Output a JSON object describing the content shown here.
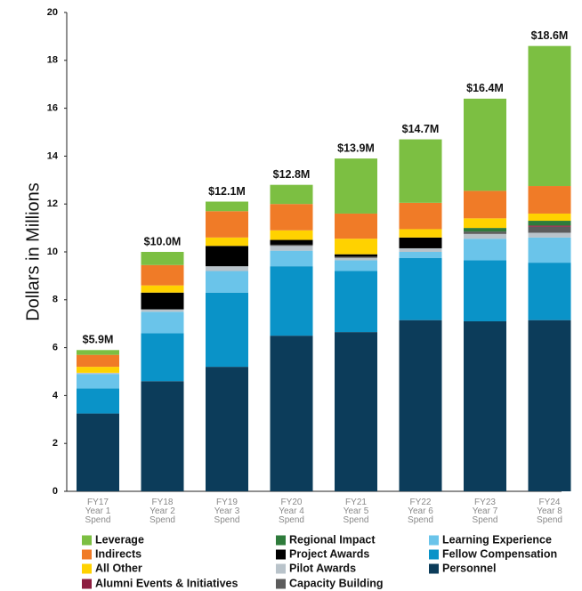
{
  "chart_data": {
    "type": "stacked_bar",
    "y_label": "Dollars in Millions",
    "categories": [
      "FY17\nYear 1\nSpend",
      "FY18\nYear 2\nSpend",
      "FY19\nYear 3\nSpend",
      "FY20\nYear 4\nSpend",
      "FY21\nYear 5\nSpend",
      "FY22\nYear 6\nSpend",
      "FY23\nYear 7\nSpend",
      "FY24\nYear 8\nSpend"
    ],
    "ylim": [
      0,
      20
    ],
    "yticks": [
      0,
      2,
      4,
      6,
      8,
      10,
      12,
      14,
      16,
      18,
      20
    ],
    "series": [
      {
        "name": "Personnel",
        "color": "#0c3c5a",
        "values": [
          3.25,
          4.6,
          5.2,
          6.5,
          6.65,
          7.15,
          7.1,
          7.15
        ]
      },
      {
        "name": "Fellow Compensation",
        "color": "#0a93c8",
        "values": [
          1.05,
          2.0,
          3.1,
          2.9,
          2.55,
          2.6,
          2.55,
          2.4
        ]
      },
      {
        "name": "Learning Experience",
        "color": "#6ac4ea",
        "values": [
          0.6,
          0.9,
          0.9,
          0.65,
          0.45,
          0.25,
          0.9,
          1.05
        ]
      },
      {
        "name": "Pilot Awards",
        "color": "#b9c3ca",
        "values": [
          0.05,
          0.1,
          0.2,
          0.2,
          0.1,
          0.15,
          0.2,
          0.2
        ]
      },
      {
        "name": "Capacity Building",
        "color": "#5c5c5c",
        "values": [
          0,
          0,
          0,
          0.05,
          0.05,
          0,
          0.1,
          0.25
        ]
      },
      {
        "name": "Alumni Events & Initiatives",
        "color": "#8c1c3f",
        "values": [
          0,
          0,
          0,
          0,
          0,
          0,
          0,
          0.05
        ]
      },
      {
        "name": "Project Awards",
        "color": "#000000",
        "values": [
          0,
          0.7,
          0.85,
          0.2,
          0.1,
          0.45,
          0,
          0
        ]
      },
      {
        "name": "Regional Impact",
        "color": "#2e7b3b",
        "values": [
          0,
          0,
          0,
          0,
          0,
          0,
          0.15,
          0.2
        ]
      },
      {
        "name": "All Other",
        "color": "#ffd200",
        "values": [
          0.25,
          0.3,
          0.35,
          0.4,
          0.65,
          0.35,
          0.4,
          0.3
        ]
      },
      {
        "name": "Indirects",
        "color": "#f07b27",
        "values": [
          0.5,
          0.85,
          1.1,
          1.1,
          1.05,
          1.1,
          1.15,
          1.15
        ]
      },
      {
        "name": "Leverage",
        "color": "#7cbf42",
        "values": [
          0.2,
          0.55,
          0.4,
          0.8,
          2.3,
          2.65,
          3.85,
          5.85
        ]
      }
    ],
    "totals": {
      "values": [
        5.9,
        10.0,
        12.1,
        12.8,
        13.9,
        14.7,
        16.4,
        18.6
      ],
      "value_labels": [
        "$5.9M",
        "$10.0M",
        "$12.1M",
        "$12.8M",
        "$13.9M",
        "$14.7M",
        "$16.4M",
        "$18.6M"
      ]
    }
  }
}
